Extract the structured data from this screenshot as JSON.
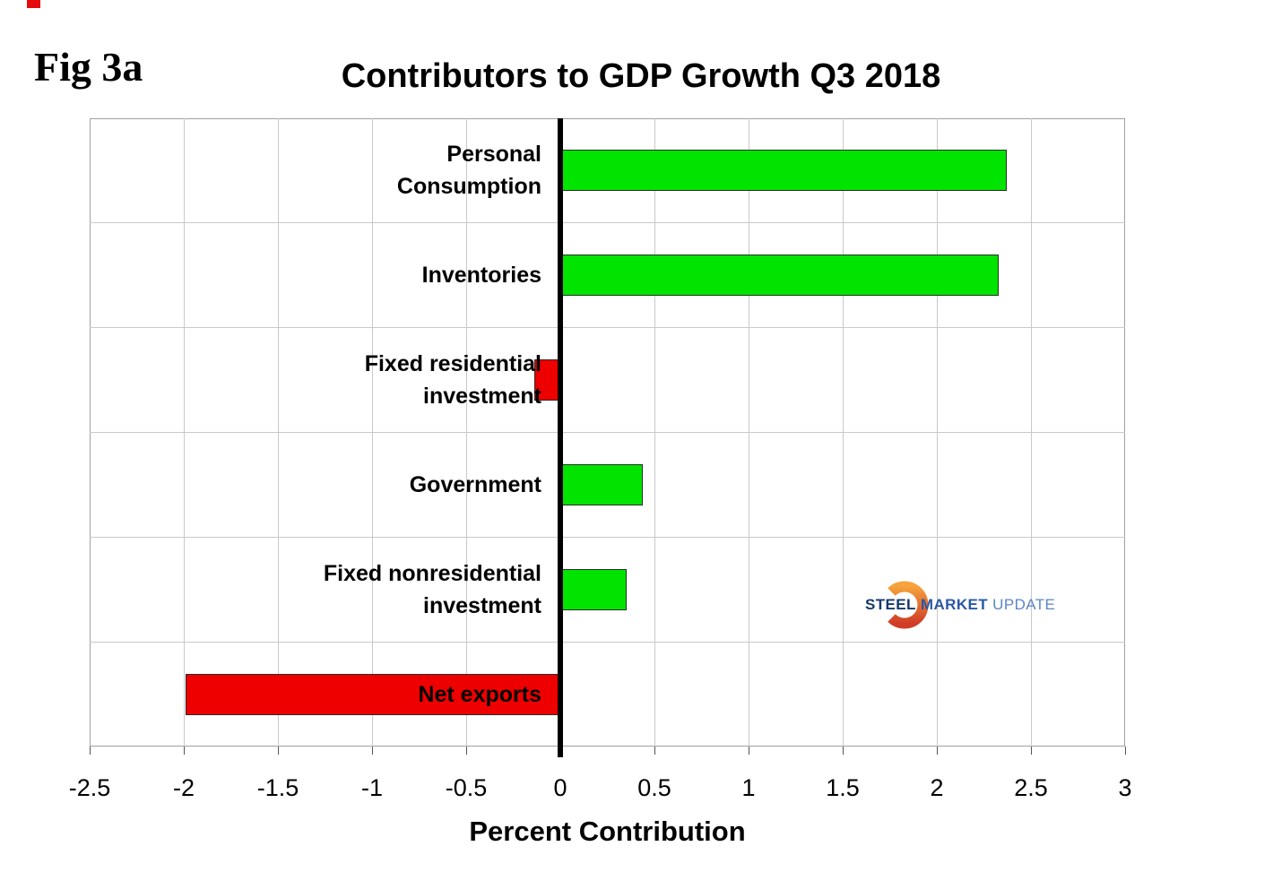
{
  "figure_label": "Fig 3a",
  "title": "Contributors to GDP Growth Q3 2018",
  "x_axis_title": "Percent Contribution",
  "chart_data": {
    "type": "bar",
    "orientation": "horizontal",
    "title": "Contributors to GDP Growth Q3 2018",
    "xlabel": "Percent Contribution",
    "ylabel": "",
    "categories": [
      "Personal Consumption",
      "Inventories",
      "Fixed residential investment",
      "Government",
      "Fixed nonresidential investment",
      "Net exports"
    ],
    "category_lines": [
      [
        "Personal",
        "Consumption"
      ],
      [
        "Inventories"
      ],
      [
        "Fixed residential",
        "investment"
      ],
      [
        "Government"
      ],
      [
        "Fixed nonresidential",
        "investment"
      ],
      [
        "Net exports"
      ]
    ],
    "values": [
      2.37,
      2.33,
      -0.14,
      0.44,
      0.35,
      -1.99
    ],
    "xlim": [
      -2.5,
      3
    ],
    "xticks": [
      -2.5,
      -2,
      -1.5,
      -1,
      -0.5,
      0,
      0.5,
      1,
      1.5,
      2,
      2.5,
      3
    ],
    "xtick_labels": [
      "-2.5",
      "-2",
      "-1.5",
      "-1",
      "-0.5",
      "0",
      "0.5",
      "1",
      "1.5",
      "2",
      "2.5",
      "3"
    ],
    "grid": true,
    "legend": false,
    "bar_colors": {
      "positive": "#00e400",
      "negative": "#ee0000"
    }
  },
  "colors": {
    "positive_bar": "#00e400",
    "negative_bar": "#ee0000",
    "bar_border": "#2a2a2a",
    "gridline": "#c9c9c9",
    "plot_border": "#a0a0a0",
    "zero_line": "#000000",
    "artifact_red": "#e40c0c"
  },
  "logo": {
    "steel": "STEEL",
    "market": "MARKET",
    "update": "UPDATE",
    "colors": {
      "steel": "#17386b",
      "market": "#2a57a5",
      "update": "#5c85c6",
      "crescent_top": "#f5a33c",
      "crescent_bottom": "#d03c26"
    }
  }
}
